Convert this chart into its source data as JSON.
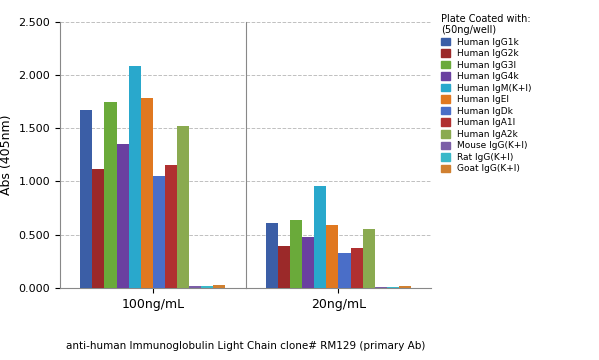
{
  "groups": [
    "100ng/mL",
    "20ng/mL"
  ],
  "series": [
    {
      "label": "Human IgG1k",
      "color": "#3b5ea6",
      "values": [
        1.67,
        0.61
      ]
    },
    {
      "label": "Human IgG2k",
      "color": "#9b2929",
      "values": [
        1.12,
        0.39
      ]
    },
    {
      "label": "Human IgG3l",
      "color": "#6aaa3a",
      "values": [
        1.75,
        0.64
      ]
    },
    {
      "label": "Human IgG4k",
      "color": "#6a40a0",
      "values": [
        1.35,
        0.48
      ]
    },
    {
      "label": "Human IgM(K+l)",
      "color": "#29a8cc",
      "values": [
        2.08,
        0.96
      ]
    },
    {
      "label": "Human IgEl",
      "color": "#e07820",
      "values": [
        1.78,
        0.595
      ]
    },
    {
      "label": "Human IgDk",
      "color": "#4a6ec8",
      "values": [
        1.05,
        0.33
      ]
    },
    {
      "label": "Human IgA1l",
      "color": "#b03030",
      "values": [
        1.15,
        0.375
      ]
    },
    {
      "label": "Human IgA2k",
      "color": "#8aaa50",
      "values": [
        1.52,
        0.555
      ]
    },
    {
      "label": "Mouse IgG(K+l)",
      "color": "#7b5ea7",
      "values": [
        0.015,
        0.01
      ]
    },
    {
      "label": "Rat IgG(K+l)",
      "color": "#3ab8c8",
      "values": [
        0.018,
        0.01
      ]
    },
    {
      "label": "Goat IgG(K+l)",
      "color": "#d08030",
      "values": [
        0.025,
        0.015
      ]
    }
  ],
  "ylabel": "Abs (405nm)",
  "xlabel": "anti-human Immunoglobulin Light Chain clone# RM129 (primary Ab)",
  "legend_title": "Plate Coated with:\n(50ng/well)",
  "ylim": [
    0.0,
    2.5
  ],
  "yticks": [
    0.0,
    0.5,
    1.0,
    1.5,
    2.0,
    2.5
  ],
  "ytick_labels": [
    "0.000",
    "0.500",
    "1.000",
    "1.500",
    "2.000",
    "2.500"
  ],
  "background_color": "#ffffff",
  "grid_color": "#b0b0b0"
}
